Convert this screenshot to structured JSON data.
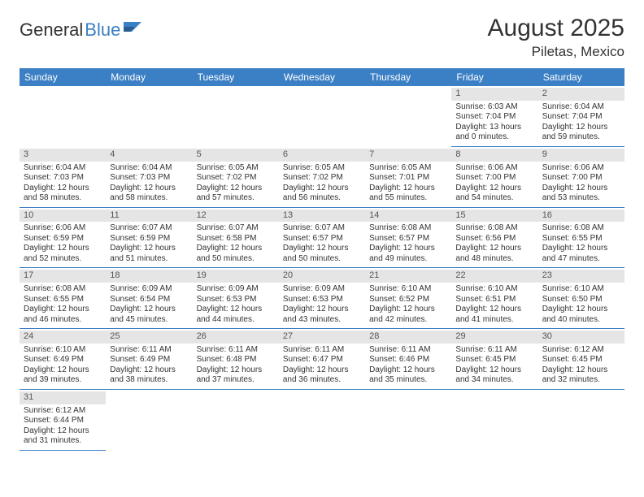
{
  "brand": {
    "part1": "General",
    "part2": "Blue"
  },
  "title": "August 2025",
  "location": "Piletas, Mexico",
  "colors": {
    "accent": "#3b7fc4",
    "text": "#333333",
    "daybar": "#e5e5e5"
  },
  "weekdays": [
    "Sunday",
    "Monday",
    "Tuesday",
    "Wednesday",
    "Thursday",
    "Friday",
    "Saturday"
  ],
  "weeks": [
    [
      null,
      null,
      null,
      null,
      null,
      {
        "n": "1",
        "sr": "Sunrise: 6:03 AM",
        "ss": "Sunset: 7:04 PM",
        "d1": "Daylight: 13 hours",
        "d2": "and 0 minutes."
      },
      {
        "n": "2",
        "sr": "Sunrise: 6:04 AM",
        "ss": "Sunset: 7:04 PM",
        "d1": "Daylight: 12 hours",
        "d2": "and 59 minutes."
      }
    ],
    [
      {
        "n": "3",
        "sr": "Sunrise: 6:04 AM",
        "ss": "Sunset: 7:03 PM",
        "d1": "Daylight: 12 hours",
        "d2": "and 58 minutes."
      },
      {
        "n": "4",
        "sr": "Sunrise: 6:04 AM",
        "ss": "Sunset: 7:03 PM",
        "d1": "Daylight: 12 hours",
        "d2": "and 58 minutes."
      },
      {
        "n": "5",
        "sr": "Sunrise: 6:05 AM",
        "ss": "Sunset: 7:02 PM",
        "d1": "Daylight: 12 hours",
        "d2": "and 57 minutes."
      },
      {
        "n": "6",
        "sr": "Sunrise: 6:05 AM",
        "ss": "Sunset: 7:02 PM",
        "d1": "Daylight: 12 hours",
        "d2": "and 56 minutes."
      },
      {
        "n": "7",
        "sr": "Sunrise: 6:05 AM",
        "ss": "Sunset: 7:01 PM",
        "d1": "Daylight: 12 hours",
        "d2": "and 55 minutes."
      },
      {
        "n": "8",
        "sr": "Sunrise: 6:06 AM",
        "ss": "Sunset: 7:00 PM",
        "d1": "Daylight: 12 hours",
        "d2": "and 54 minutes."
      },
      {
        "n": "9",
        "sr": "Sunrise: 6:06 AM",
        "ss": "Sunset: 7:00 PM",
        "d1": "Daylight: 12 hours",
        "d2": "and 53 minutes."
      }
    ],
    [
      {
        "n": "10",
        "sr": "Sunrise: 6:06 AM",
        "ss": "Sunset: 6:59 PM",
        "d1": "Daylight: 12 hours",
        "d2": "and 52 minutes."
      },
      {
        "n": "11",
        "sr": "Sunrise: 6:07 AM",
        "ss": "Sunset: 6:59 PM",
        "d1": "Daylight: 12 hours",
        "d2": "and 51 minutes."
      },
      {
        "n": "12",
        "sr": "Sunrise: 6:07 AM",
        "ss": "Sunset: 6:58 PM",
        "d1": "Daylight: 12 hours",
        "d2": "and 50 minutes."
      },
      {
        "n": "13",
        "sr": "Sunrise: 6:07 AM",
        "ss": "Sunset: 6:57 PM",
        "d1": "Daylight: 12 hours",
        "d2": "and 50 minutes."
      },
      {
        "n": "14",
        "sr": "Sunrise: 6:08 AM",
        "ss": "Sunset: 6:57 PM",
        "d1": "Daylight: 12 hours",
        "d2": "and 49 minutes."
      },
      {
        "n": "15",
        "sr": "Sunrise: 6:08 AM",
        "ss": "Sunset: 6:56 PM",
        "d1": "Daylight: 12 hours",
        "d2": "and 48 minutes."
      },
      {
        "n": "16",
        "sr": "Sunrise: 6:08 AM",
        "ss": "Sunset: 6:55 PM",
        "d1": "Daylight: 12 hours",
        "d2": "and 47 minutes."
      }
    ],
    [
      {
        "n": "17",
        "sr": "Sunrise: 6:08 AM",
        "ss": "Sunset: 6:55 PM",
        "d1": "Daylight: 12 hours",
        "d2": "and 46 minutes."
      },
      {
        "n": "18",
        "sr": "Sunrise: 6:09 AM",
        "ss": "Sunset: 6:54 PM",
        "d1": "Daylight: 12 hours",
        "d2": "and 45 minutes."
      },
      {
        "n": "19",
        "sr": "Sunrise: 6:09 AM",
        "ss": "Sunset: 6:53 PM",
        "d1": "Daylight: 12 hours",
        "d2": "and 44 minutes."
      },
      {
        "n": "20",
        "sr": "Sunrise: 6:09 AM",
        "ss": "Sunset: 6:53 PM",
        "d1": "Daylight: 12 hours",
        "d2": "and 43 minutes."
      },
      {
        "n": "21",
        "sr": "Sunrise: 6:10 AM",
        "ss": "Sunset: 6:52 PM",
        "d1": "Daylight: 12 hours",
        "d2": "and 42 minutes."
      },
      {
        "n": "22",
        "sr": "Sunrise: 6:10 AM",
        "ss": "Sunset: 6:51 PM",
        "d1": "Daylight: 12 hours",
        "d2": "and 41 minutes."
      },
      {
        "n": "23",
        "sr": "Sunrise: 6:10 AM",
        "ss": "Sunset: 6:50 PM",
        "d1": "Daylight: 12 hours",
        "d2": "and 40 minutes."
      }
    ],
    [
      {
        "n": "24",
        "sr": "Sunrise: 6:10 AM",
        "ss": "Sunset: 6:49 PM",
        "d1": "Daylight: 12 hours",
        "d2": "and 39 minutes."
      },
      {
        "n": "25",
        "sr": "Sunrise: 6:11 AM",
        "ss": "Sunset: 6:49 PM",
        "d1": "Daylight: 12 hours",
        "d2": "and 38 minutes."
      },
      {
        "n": "26",
        "sr": "Sunrise: 6:11 AM",
        "ss": "Sunset: 6:48 PM",
        "d1": "Daylight: 12 hours",
        "d2": "and 37 minutes."
      },
      {
        "n": "27",
        "sr": "Sunrise: 6:11 AM",
        "ss": "Sunset: 6:47 PM",
        "d1": "Daylight: 12 hours",
        "d2": "and 36 minutes."
      },
      {
        "n": "28",
        "sr": "Sunrise: 6:11 AM",
        "ss": "Sunset: 6:46 PM",
        "d1": "Daylight: 12 hours",
        "d2": "and 35 minutes."
      },
      {
        "n": "29",
        "sr": "Sunrise: 6:11 AM",
        "ss": "Sunset: 6:45 PM",
        "d1": "Daylight: 12 hours",
        "d2": "and 34 minutes."
      },
      {
        "n": "30",
        "sr": "Sunrise: 6:12 AM",
        "ss": "Sunset: 6:45 PM",
        "d1": "Daylight: 12 hours",
        "d2": "and 32 minutes."
      }
    ],
    [
      {
        "n": "31",
        "sr": "Sunrise: 6:12 AM",
        "ss": "Sunset: 6:44 PM",
        "d1": "Daylight: 12 hours",
        "d2": "and 31 minutes."
      },
      null,
      null,
      null,
      null,
      null,
      null
    ]
  ]
}
